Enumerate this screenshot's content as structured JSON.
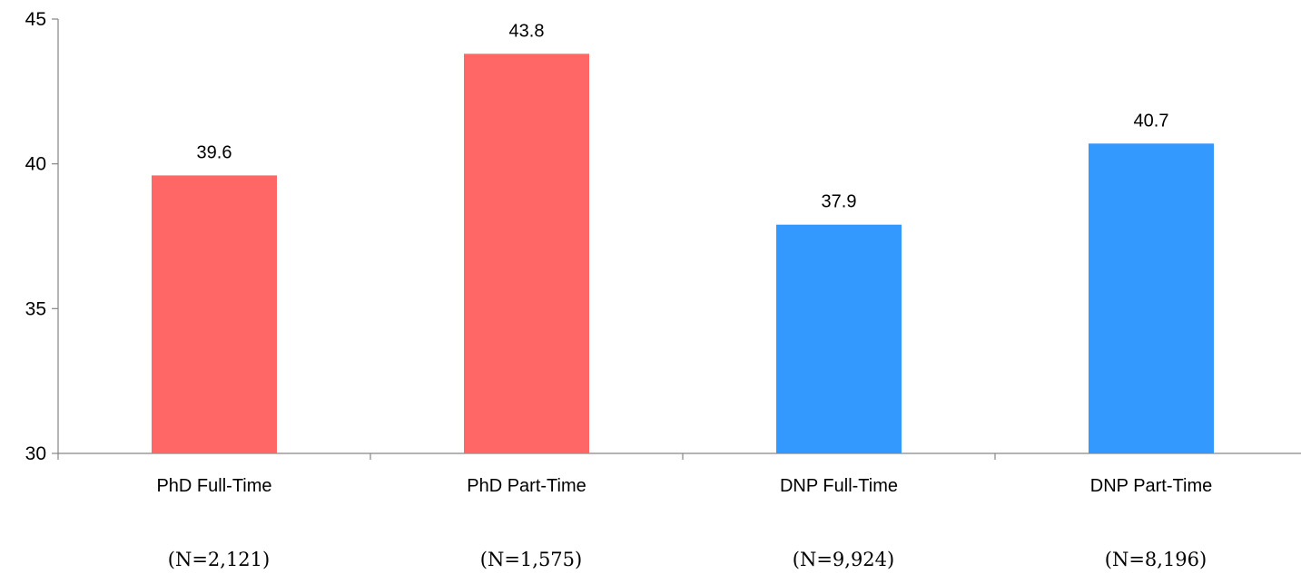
{
  "chart_data": {
    "type": "bar",
    "categories": [
      "PhD Full-Time",
      "PhD Part-Time",
      "DNP Full-Time",
      "DNP Part-Time"
    ],
    "sample_sizes": [
      "(N=2,121)",
      "(N=1,575)",
      "(N=9,924)",
      "(N=8,196)"
    ],
    "values": [
      39.6,
      43.8,
      37.9,
      40.7
    ],
    "data_labels": [
      "39.6",
      "43.8",
      "37.9",
      "40.7"
    ],
    "bar_colors": [
      "#ff6666",
      "#ff6666",
      "#3399ff",
      "#3399ff"
    ],
    "ylim": [
      30,
      45
    ],
    "yticks": [
      30,
      35,
      40,
      45
    ],
    "grid": false,
    "legend": "none",
    "title": "",
    "xlabel": "",
    "ylabel": ""
  }
}
